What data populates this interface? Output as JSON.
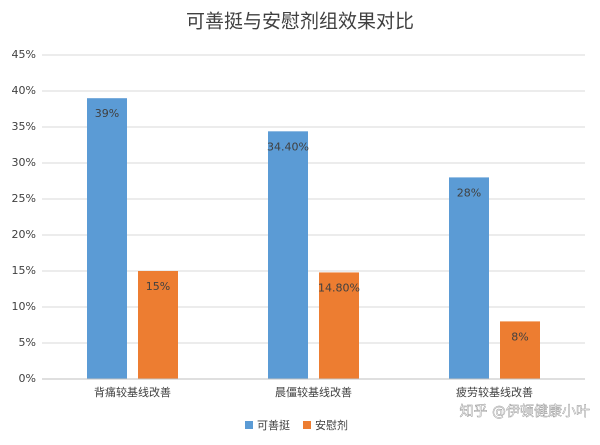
{
  "chart_data": {
    "type": "bar",
    "title": "可善挺与安慰剂组效果对比",
    "categories": [
      "背痛较基线改善",
      "晨僵较基线改善",
      "疲劳较基线改善"
    ],
    "series": [
      {
        "name": "可善挺",
        "color": "#5b9bd5",
        "values": [
          39,
          34.4,
          28
        ],
        "value_labels": [
          "39%",
          "34.40%",
          "28%"
        ]
      },
      {
        "name": "安慰剂",
        "color": "#ed7d31",
        "values": [
          15,
          14.8,
          8
        ],
        "value_labels": [
          "15%",
          "14.80%",
          "8%"
        ]
      }
    ],
    "ylim": [
      0,
      45
    ],
    "yticks": [
      {
        "value": 0,
        "label": "0%"
      },
      {
        "value": 5,
        "label": "5%"
      },
      {
        "value": 10,
        "label": "10%"
      },
      {
        "value": 15,
        "label": "15%"
      },
      {
        "value": 20,
        "label": "20%"
      },
      {
        "value": 25,
        "label": "25%"
      },
      {
        "value": 30,
        "label": "30%"
      },
      {
        "value": 35,
        "label": "35%"
      },
      {
        "value": 40,
        "label": "40%"
      },
      {
        "value": 45,
        "label": "45%"
      }
    ],
    "grid": true,
    "legend": "bottom",
    "watermark": "知乎 @伊顿健康小叶"
  }
}
